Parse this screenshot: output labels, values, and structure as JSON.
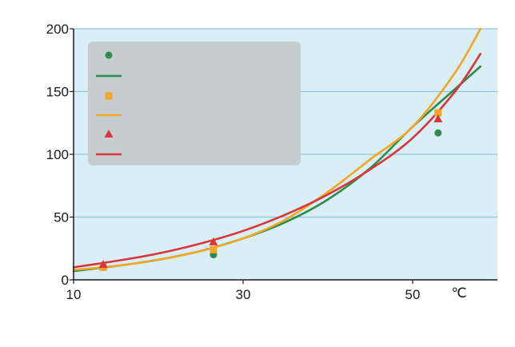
{
  "chart_data": {
    "type": "line",
    "x_unit": "℃",
    "xlim": [
      10,
      60
    ],
    "ylim": [
      0,
      200
    ],
    "x_ticks": [
      "10",
      "30",
      "50"
    ],
    "y_ticks": [
      "0",
      "50",
      "100",
      "150",
      "200"
    ],
    "grid": true,
    "legend": "top-left",
    "colors": {
      "plot_bg": "#d9eef7",
      "grid": "#8ec7df",
      "axis": "#1a1a1a",
      "legend_bg": "#c6cdd0",
      "green": "#2e8b4a",
      "orange": "#f5a623",
      "red": "#d8363a"
    },
    "series": [
      {
        "kind": "points",
        "marker": "circle",
        "color": "#2e8b4a",
        "points": [
          {
            "x": 13.5,
            "y": 10
          },
          {
            "x": 26.5,
            "y": 20
          },
          {
            "x": 53,
            "y": 117
          }
        ]
      },
      {
        "kind": "curve",
        "color": "#2e8b4a",
        "points": [
          [
            10,
            7
          ],
          [
            15,
            11
          ],
          [
            20,
            16
          ],
          [
            25,
            23
          ],
          [
            30,
            33
          ],
          [
            35,
            46
          ],
          [
            40,
            64
          ],
          [
            45,
            89
          ],
          [
            50,
            122
          ],
          [
            55,
            152
          ],
          [
            58,
            170
          ]
        ]
      },
      {
        "kind": "points",
        "marker": "square",
        "color": "#f5a623",
        "points": [
          {
            "x": 13.5,
            "y": 10
          },
          {
            "x": 26.5,
            "y": 24
          },
          {
            "x": 53,
            "y": 133
          }
        ]
      },
      {
        "kind": "curve",
        "color": "#f5a623",
        "points": [
          [
            10,
            8
          ],
          [
            15,
            11
          ],
          [
            20,
            16
          ],
          [
            25,
            23
          ],
          [
            30,
            33
          ],
          [
            35,
            48
          ],
          [
            40,
            70
          ],
          [
            45,
            96
          ],
          [
            50,
            122
          ],
          [
            55,
            165
          ],
          [
            58,
            200
          ]
        ]
      },
      {
        "kind": "points",
        "marker": "triangle",
        "color": "#d8363a",
        "points": [
          {
            "x": 13.5,
            "y": 12
          },
          {
            "x": 26.5,
            "y": 30
          },
          {
            "x": 53,
            "y": 128
          }
        ]
      },
      {
        "kind": "curve",
        "color": "#d8363a",
        "points": [
          [
            10,
            10
          ],
          [
            15,
            15
          ],
          [
            20,
            21
          ],
          [
            25,
            29
          ],
          [
            30,
            39
          ],
          [
            35,
            52
          ],
          [
            40,
            68
          ],
          [
            45,
            88
          ],
          [
            50,
            113
          ],
          [
            55,
            150
          ],
          [
            58,
            180
          ]
        ]
      }
    ]
  }
}
